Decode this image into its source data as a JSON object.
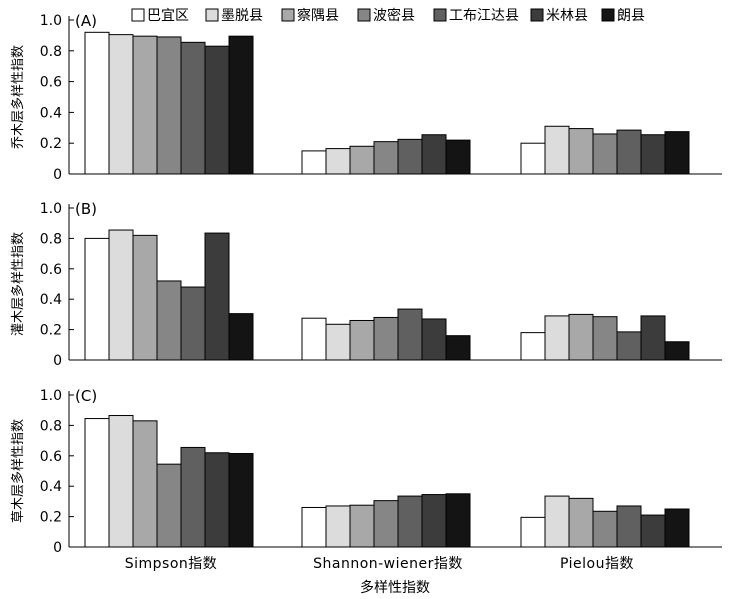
{
  "colors": [
    "#ffffff",
    "#dcdcdc",
    "#a8a8a8",
    "#868686",
    "#606060",
    "#3c3c3c",
    "#141414"
  ],
  "legend": [
    "巴宜区",
    "墨脱县",
    "察隅县",
    "波密县",
    "工布江达县",
    "米林县",
    "朗县"
  ],
  "xlabel": "多样性指数",
  "chart_data": [
    {
      "type": "bar",
      "panel_label": "(A)",
      "ylabel": "乔木层多样性指数",
      "categories": [
        "Simpson指数",
        "Shannon-wiener指数",
        "Pielou指数"
      ],
      "ylim": [
        0,
        1.0
      ],
      "yticks": [
        "0",
        "0.2",
        "0.4",
        "0.6",
        "0.8",
        "1.0"
      ],
      "series": [
        {
          "name": "巴宜区",
          "values": [
            0.92,
            0.15,
            0.2
          ]
        },
        {
          "name": "墨脱县",
          "values": [
            0.905,
            0.165,
            0.31
          ]
        },
        {
          "name": "察隅县",
          "values": [
            0.895,
            0.18,
            0.295
          ]
        },
        {
          "name": "波密县",
          "values": [
            0.89,
            0.21,
            0.26
          ]
        },
        {
          "name": "工布江达县",
          "values": [
            0.855,
            0.225,
            0.285
          ]
        },
        {
          "name": "米林县",
          "values": [
            0.83,
            0.255,
            0.255
          ]
        },
        {
          "name": "朗县",
          "values": [
            0.895,
            0.22,
            0.275
          ]
        }
      ]
    },
    {
      "type": "bar",
      "panel_label": "(B)",
      "ylabel": "灌木层多样性指数",
      "categories": [
        "Simpson指数",
        "Shannon-wiener指数",
        "Pielou指数"
      ],
      "ylim": [
        0,
        1.0
      ],
      "yticks": [
        "0",
        "0.2",
        "0.4",
        "0.6",
        "0.8",
        "1.0"
      ],
      "series": [
        {
          "name": "巴宜区",
          "values": [
            0.8,
            0.275,
            0.18
          ]
        },
        {
          "name": "墨脱县",
          "values": [
            0.855,
            0.235,
            0.29
          ]
        },
        {
          "name": "察隅县",
          "values": [
            0.82,
            0.26,
            0.3
          ]
        },
        {
          "name": "波密县",
          "values": [
            0.52,
            0.28,
            0.285
          ]
        },
        {
          "name": "工布江达县",
          "values": [
            0.48,
            0.335,
            0.185
          ]
        },
        {
          "name": "米林县",
          "values": [
            0.835,
            0.27,
            0.29
          ]
        },
        {
          "name": "朗县",
          "values": [
            0.305,
            0.16,
            0.12
          ]
        }
      ]
    },
    {
      "type": "bar",
      "panel_label": "(C)",
      "ylabel": "草木层多样性指数",
      "categories": [
        "Simpson指数",
        "Shannon-wiener指数",
        "Pielou指数"
      ],
      "ylim": [
        0,
        1.0
      ],
      "yticks": [
        "0",
        "0.2",
        "0.4",
        "0.6",
        "0.8",
        "1.0"
      ],
      "series": [
        {
          "name": "巴宜区",
          "values": [
            0.845,
            0.26,
            0.195
          ]
        },
        {
          "name": "墨脱县",
          "values": [
            0.865,
            0.27,
            0.335
          ]
        },
        {
          "name": "察隅县",
          "values": [
            0.83,
            0.275,
            0.32
          ]
        },
        {
          "name": "波密县",
          "values": [
            0.545,
            0.305,
            0.235
          ]
        },
        {
          "name": "工布江达县",
          "values": [
            0.655,
            0.335,
            0.27
          ]
        },
        {
          "name": "米林县",
          "values": [
            0.62,
            0.345,
            0.21
          ]
        },
        {
          "name": "朗县",
          "values": [
            0.615,
            0.35,
            0.25
          ]
        }
      ]
    }
  ]
}
